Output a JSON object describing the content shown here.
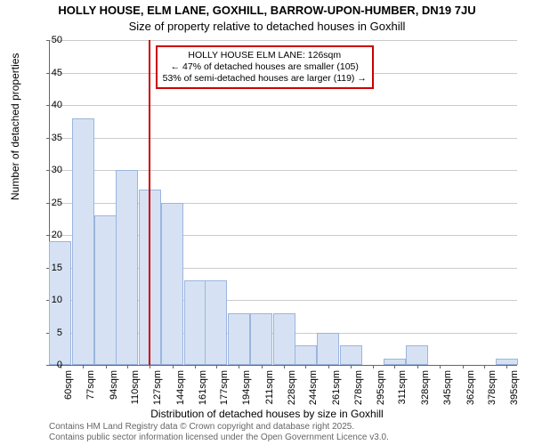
{
  "title_main": "HOLLY HOUSE, ELM LANE, GOXHILL, BARROW-UPON-HUMBER, DN19 7JU",
  "title_sub": "Size of property relative to detached houses in Goxhill",
  "ylabel": "Number of detached properties",
  "xlabel": "Distribution of detached houses by size in Goxhill",
  "attribution_line1": "Contains HM Land Registry data © Crown copyright and database right 2025.",
  "attribution_line2": "Contains public sector information licensed under the Open Government Licence v3.0.",
  "info_box": {
    "line1": "HOLLY HOUSE ELM LANE: 126sqm",
    "line2": "← 47% of detached houses are smaller (105)",
    "line3": "53% of semi-detached houses are larger (119) →"
  },
  "chart": {
    "type": "histogram",
    "background_color": "#ffffff",
    "grid_color": "#cccccc",
    "bar_fill": "#d6e2f3",
    "bar_border": "#9bb5dd",
    "reference_line_color": "#cc0000",
    "reference_value": 126,
    "ylim": [
      0,
      50
    ],
    "ytick_step": 5,
    "yticks": [
      0,
      5,
      10,
      15,
      20,
      25,
      30,
      35,
      40,
      45,
      50
    ],
    "x_min": 52,
    "x_max": 403,
    "xticks": [
      60,
      77,
      94,
      110,
      127,
      144,
      161,
      177,
      194,
      211,
      228,
      244,
      261,
      278,
      295,
      311,
      328,
      345,
      362,
      378,
      395
    ],
    "xtick_suffix": "sqm",
    "bar_width_units": 16.7,
    "bars": [
      {
        "x": 60,
        "y": 19
      },
      {
        "x": 77,
        "y": 38
      },
      {
        "x": 94,
        "y": 23
      },
      {
        "x": 110,
        "y": 30
      },
      {
        "x": 127,
        "y": 27
      },
      {
        "x": 144,
        "y": 25
      },
      {
        "x": 161,
        "y": 13
      },
      {
        "x": 177,
        "y": 13
      },
      {
        "x": 194,
        "y": 8
      },
      {
        "x": 211,
        "y": 8
      },
      {
        "x": 228,
        "y": 8
      },
      {
        "x": 244,
        "y": 3
      },
      {
        "x": 261,
        "y": 5
      },
      {
        "x": 278,
        "y": 3
      },
      {
        "x": 295,
        "y": 0
      },
      {
        "x": 311,
        "y": 1
      },
      {
        "x": 328,
        "y": 3
      },
      {
        "x": 345,
        "y": 0
      },
      {
        "x": 362,
        "y": 0
      },
      {
        "x": 378,
        "y": 0
      },
      {
        "x": 395,
        "y": 1
      }
    ],
    "title_fontsize": 13,
    "label_fontsize": 12,
    "tick_fontsize": 11,
    "info_fontsize": 10.5
  }
}
